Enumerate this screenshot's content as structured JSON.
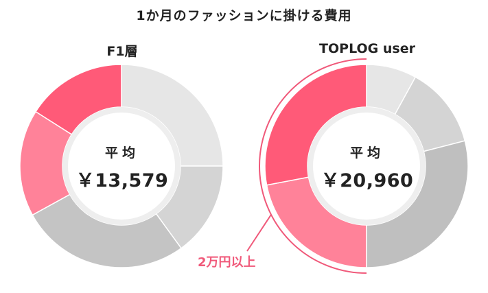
{
  "title": "1か月のファッションに掛ける費用",
  "annotation": {
    "text": "2万円以上",
    "color": "#f0597a"
  },
  "colors": {
    "pink_dark": "#ff5a78",
    "pink_light": "#ff8299",
    "gray_light": "#e6e6e6",
    "gray_mid": "#d4d4d4",
    "gray_dark": "#bfbfbf",
    "center_ring": "#eeeeee"
  },
  "chart_data": [
    {
      "type": "pie",
      "title": "F1層",
      "center_caption": "平均",
      "center_value": "￥13,579",
      "slices": [
        {
          "value": 25,
          "color": "#e6e6e6"
        },
        {
          "value": 15,
          "color": "#d4d4d4"
        },
        {
          "value": 27,
          "color": "#c4c4c4"
        },
        {
          "value": 17,
          "color": "#ff8299"
        },
        {
          "value": 16,
          "color": "#ff5a78"
        }
      ]
    },
    {
      "type": "pie",
      "title": "TOPLOG user",
      "center_caption": "平均",
      "center_value": "￥20,960",
      "slices": [
        {
          "value": 8,
          "color": "#e6e6e6"
        },
        {
          "value": 13,
          "color": "#d4d4d4"
        },
        {
          "value": 29,
          "color": "#bfbfbf"
        },
        {
          "value": 22,
          "color": "#ff8299"
        },
        {
          "value": 28,
          "color": "#ff5a78"
        }
      ]
    }
  ]
}
